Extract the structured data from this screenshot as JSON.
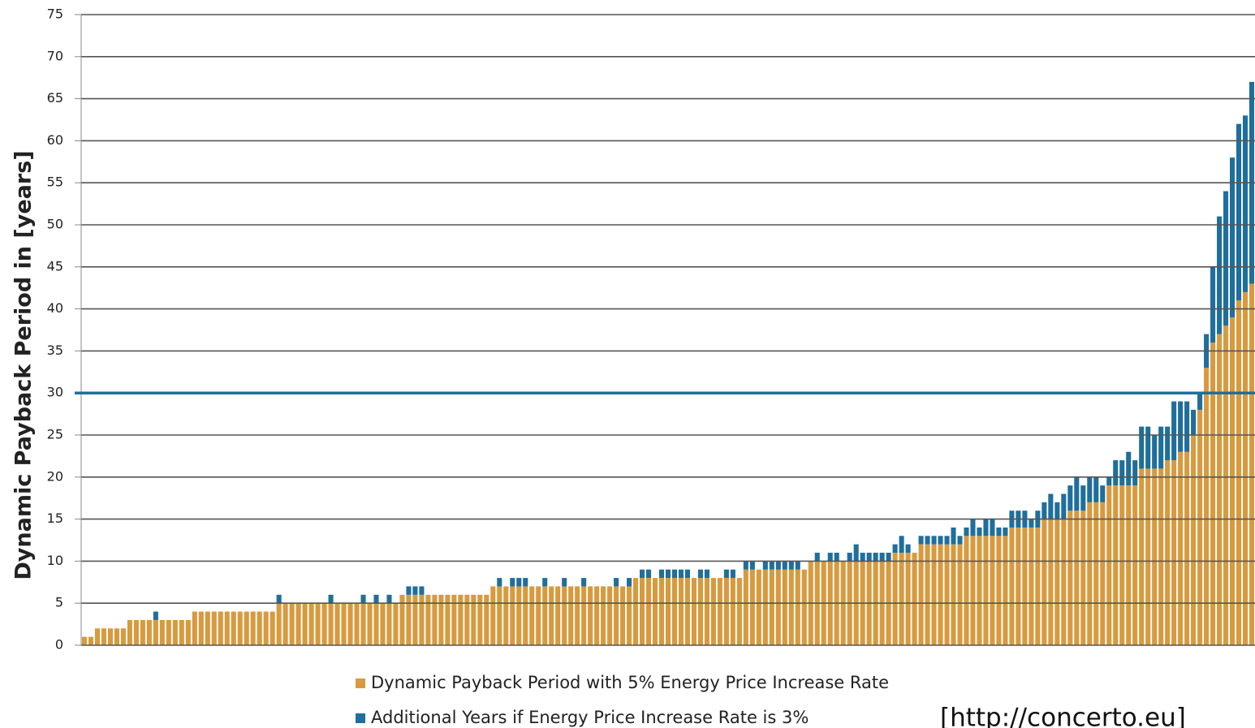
{
  "chart_data": {
    "type": "stacked_bar",
    "y_label": "Dynamic Payback Period in [years]",
    "annotation": "[http://concerto.eu]",
    "ylim": [
      0,
      75
    ],
    "yticks": [
      0,
      5,
      10,
      15,
      20,
      25,
      30,
      35,
      40,
      45,
      50,
      55,
      60,
      65,
      70,
      75
    ],
    "grid": true,
    "reference_line": {
      "value": 30,
      "color": "#1f6e9c"
    },
    "series": [
      {
        "name": "Dynamic Payback Period with 5% Energy Price Increase Rate",
        "color": "#d89a3e",
        "values": [
          1,
          1,
          2,
          2,
          2,
          2,
          2,
          3,
          3,
          3,
          3,
          3,
          3,
          3,
          3,
          3,
          3,
          4,
          4,
          4,
          4,
          4,
          4,
          4,
          4,
          4,
          4,
          4,
          4,
          4,
          5,
          5,
          5,
          5,
          5,
          5,
          5,
          5,
          5,
          5,
          5,
          5,
          5,
          5,
          5,
          5,
          5,
          5,
          5,
          6,
          6,
          6,
          6,
          6,
          6,
          6,
          6,
          6,
          6,
          6,
          6,
          6,
          6,
          7,
          7,
          7,
          7,
          7,
          7,
          7,
          7,
          7,
          7,
          7,
          7,
          7,
          7,
          7,
          7,
          7,
          7,
          7,
          7,
          7,
          7,
          8,
          8,
          8,
          8,
          8,
          8,
          8,
          8,
          8,
          8,
          8,
          8,
          8,
          8,
          8,
          8,
          8,
          9,
          9,
          9,
          9,
          9,
          9,
          9,
          9,
          9,
          9,
          10,
          10,
          10,
          10,
          10,
          10,
          10,
          10,
          10,
          10,
          10,
          10,
          10,
          11,
          11,
          11,
          11,
          12,
          12,
          12,
          12,
          12,
          12,
          12,
          13,
          13,
          13,
          13,
          13,
          13,
          13,
          14,
          14,
          14,
          14,
          14,
          15,
          15,
          15,
          15,
          16,
          16,
          16,
          17,
          17,
          17,
          19,
          19,
          19,
          19,
          19,
          21,
          21,
          21,
          21,
          22,
          22,
          23,
          23,
          25,
          28,
          33,
          36,
          37,
          38,
          39,
          41,
          42,
          43
        ]
      },
      {
        "name": "Additional Years if Energy Price Increase Rate is 3%",
        "color": "#1f6e9c",
        "values": [
          0,
          0,
          0,
          0,
          0,
          0,
          0,
          0,
          0,
          0,
          0,
          1,
          0,
          0,
          0,
          0,
          0,
          0,
          0,
          0,
          0,
          0,
          0,
          0,
          0,
          0,
          0,
          0,
          0,
          0,
          1,
          0,
          0,
          0,
          0,
          0,
          0,
          0,
          1,
          0,
          0,
          0,
          0,
          1,
          0,
          1,
          0,
          1,
          0,
          0,
          1,
          1,
          1,
          0,
          0,
          0,
          0,
          0,
          0,
          0,
          0,
          0,
          0,
          0,
          1,
          0,
          1,
          1,
          1,
          0,
          0,
          1,
          0,
          0,
          1,
          0,
          0,
          1,
          0,
          0,
          0,
          0,
          1,
          0,
          1,
          0,
          1,
          1,
          0,
          1,
          1,
          1,
          1,
          1,
          0,
          1,
          1,
          0,
          0,
          1,
          1,
          0,
          1,
          1,
          0,
          1,
          1,
          1,
          1,
          1,
          1,
          0,
          0,
          1,
          0,
          1,
          1,
          0,
          1,
          2,
          1,
          1,
          1,
          1,
          1,
          1,
          2,
          1,
          0,
          1,
          1,
          1,
          1,
          1,
          2,
          1,
          1,
          2,
          1,
          2,
          2,
          1,
          1,
          2,
          2,
          2,
          1,
          2,
          2,
          3,
          2,
          3,
          3,
          4,
          3,
          3,
          3,
          2,
          1,
          3,
          3,
          4,
          3,
          5,
          5,
          4,
          5,
          4,
          7,
          6,
          6,
          3,
          2,
          4,
          9,
          14,
          16,
          19,
          21,
          21,
          24
        ]
      }
    ]
  }
}
